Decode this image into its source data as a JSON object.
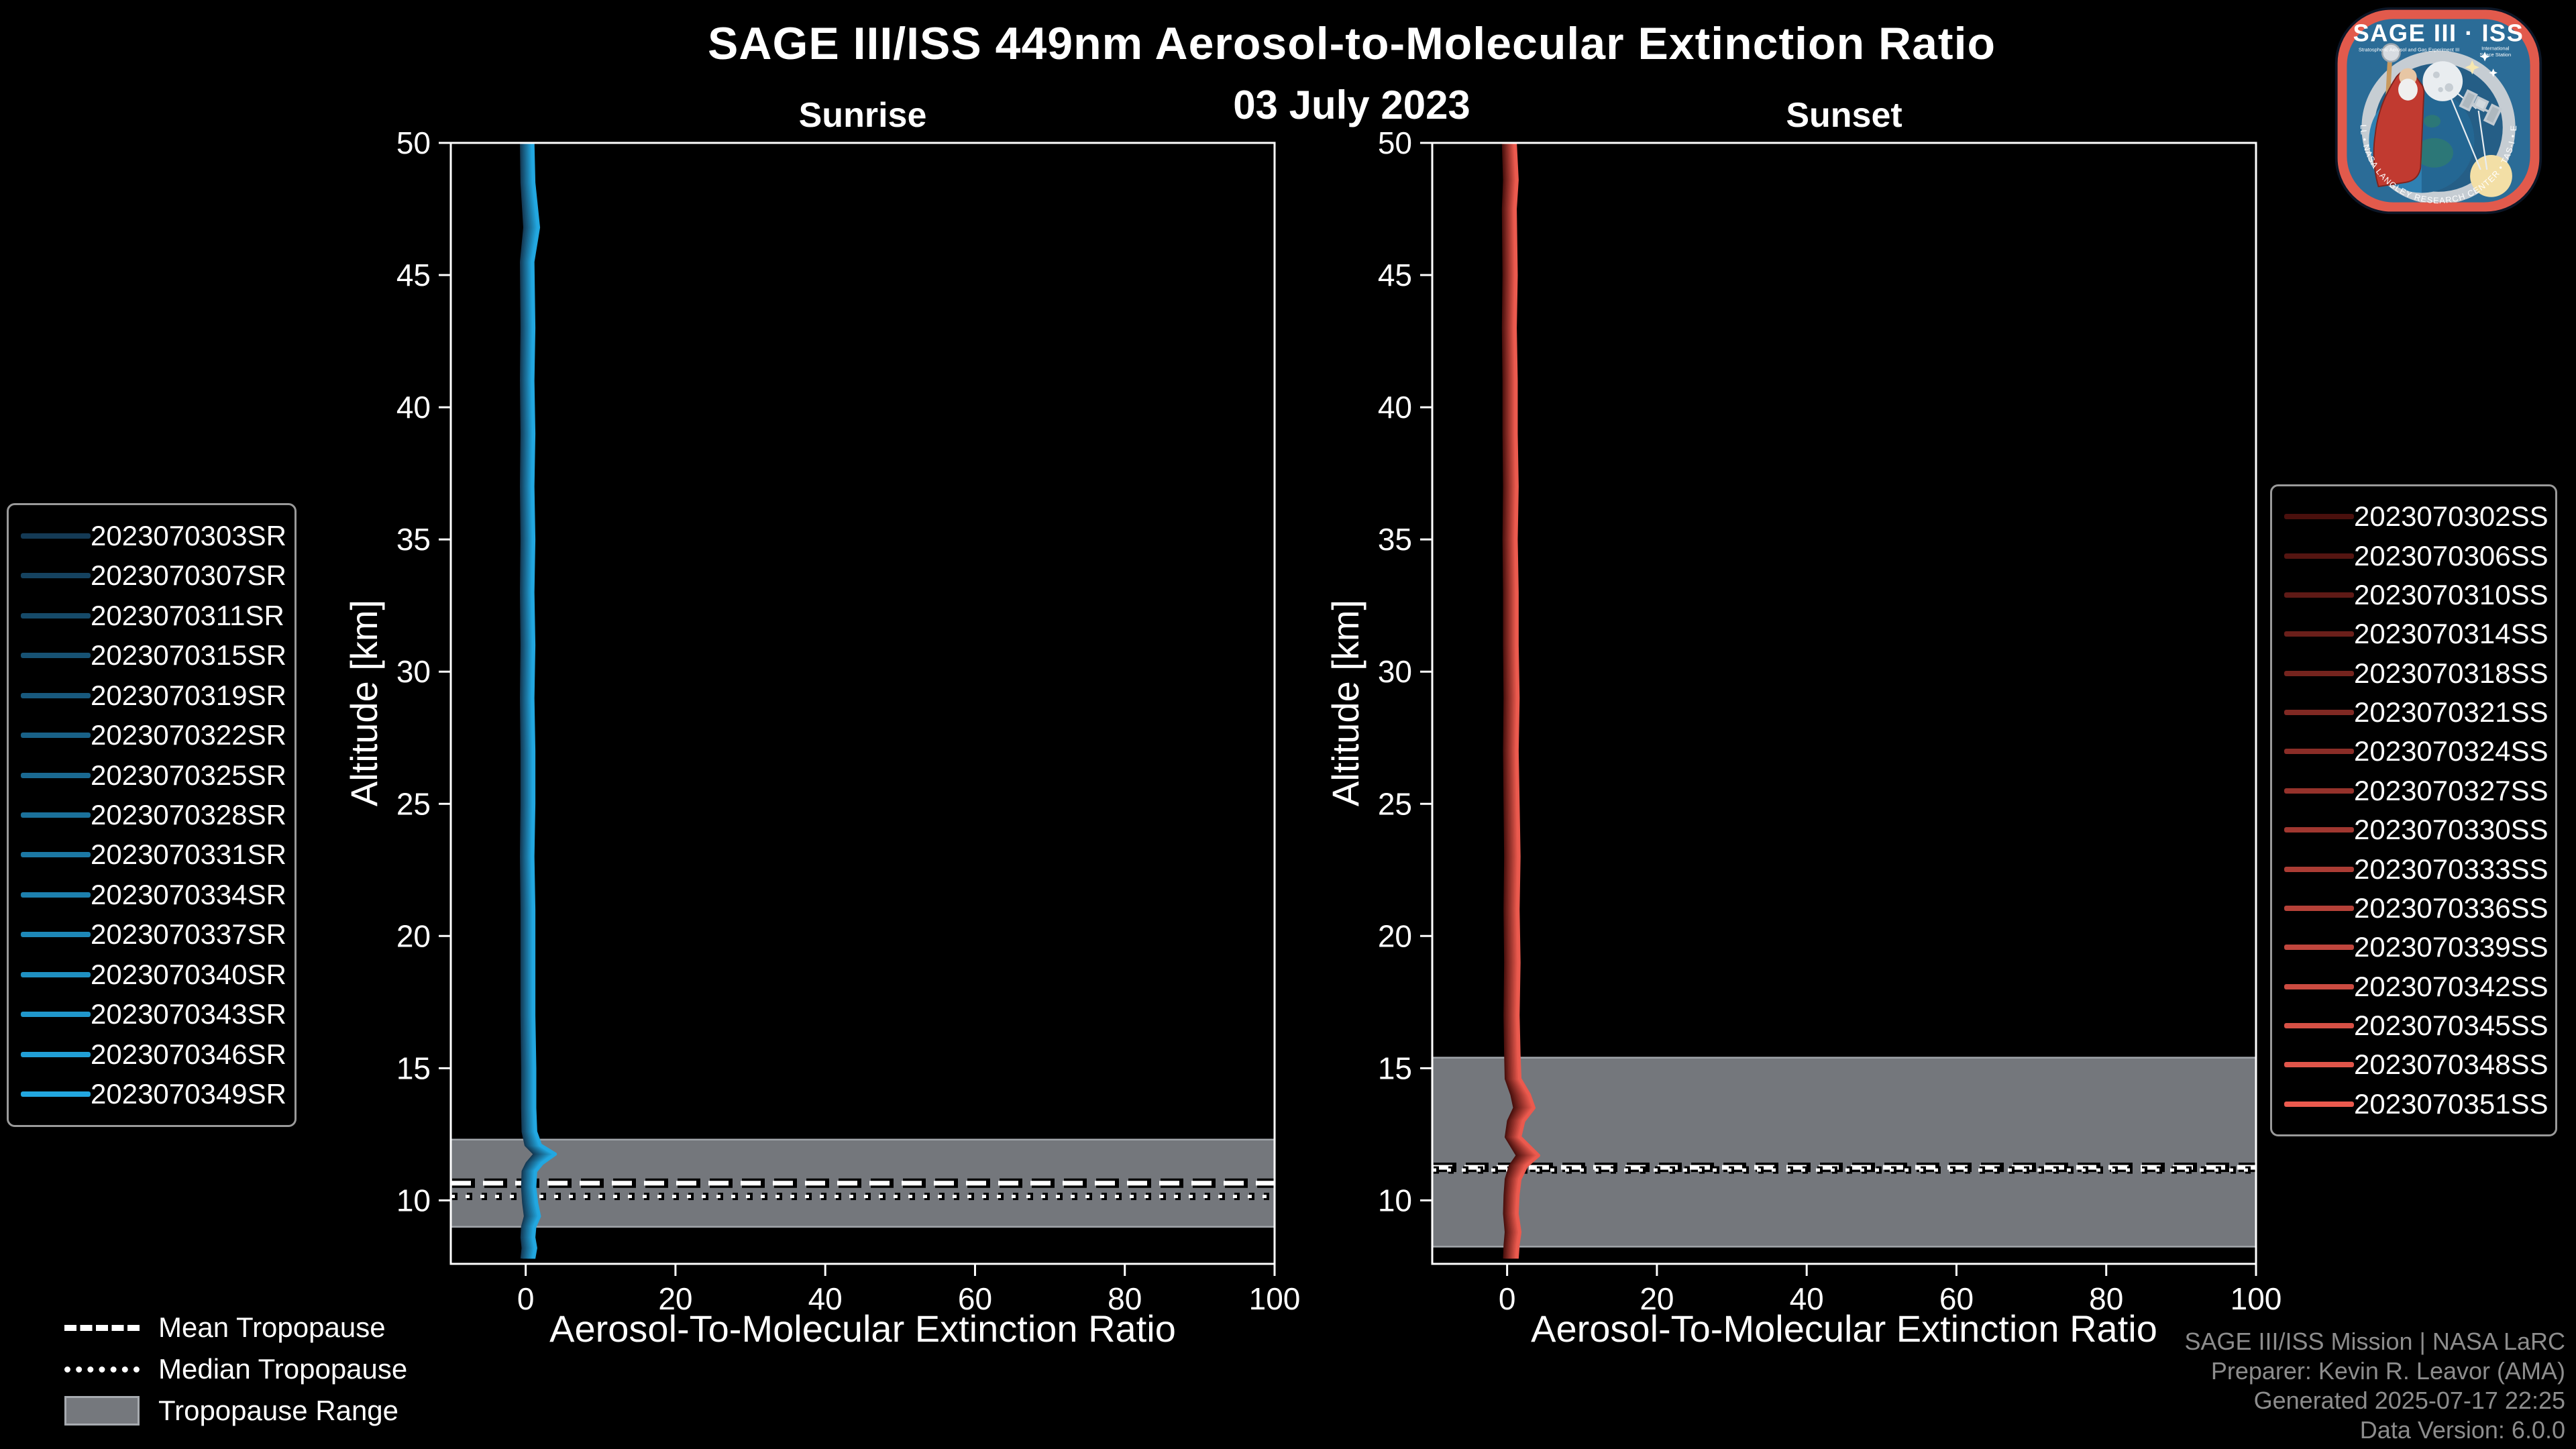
{
  "page": {
    "background": "#000000",
    "axis_color": "#FFFFFF"
  },
  "header": {
    "title": "SAGE III/ISS 449nm Aerosol-to-Molecular Extinction Ratio",
    "date": "03 July 2023"
  },
  "logo": {
    "title": "SAGE III · ISS",
    "subtitle_left": "Stratospheric Aerosol and Gas Experiment III",
    "subtitle_right1": "International",
    "subtitle_right2": "Space Station",
    "ring_text": "BALL • NASA LANGLEY RESEARCH CENTER • TAS-I • ESA",
    "border_color": "#E25A4C",
    "field_color": "#2B6C97"
  },
  "tropopause_legend": {
    "items": [
      {
        "label": "Mean Tropopause",
        "style": "dashed"
      },
      {
        "label": "Median Tropopause",
        "style": "dotted"
      },
      {
        "label": "Tropopause Range",
        "style": "band"
      }
    ]
  },
  "footer": {
    "color": "#8D8D8D",
    "lines": [
      "SAGE III/ISS Mission | NASA LaRC",
      "Preparer: Kevin R. Leavor (AMA)",
      "Generated 2025-07-17 22:25",
      "Data Version: 6.0.0"
    ]
  },
  "chart_data": [
    {
      "type": "line",
      "title": "Sunrise",
      "xlabel": "Aerosol-To-Molecular Extinction Ratio",
      "ylabel": "Altitude [km]",
      "xlim": [
        -10,
        100
      ],
      "ylim": [
        7.6,
        50
      ],
      "xticks": [
        0,
        20,
        40,
        60,
        80,
        100
      ],
      "yticks": [
        10,
        15,
        20,
        25,
        30,
        35,
        40,
        45,
        50
      ],
      "grid": false,
      "legend_position": "outside-left",
      "line_color": "#1F97D0",
      "tropopause": {
        "range_km": [
          9.0,
          12.3
        ],
        "mean_km": 10.65,
        "median_km": 10.15,
        "band_color": "#74777C",
        "band_edge_color": "#A2A6AB"
      },
      "profile_ratio_alt": [
        [
          0.2,
          50
        ],
        [
          0.3,
          48.5
        ],
        [
          0.8,
          46.8
        ],
        [
          0.2,
          45.5
        ],
        [
          0.3,
          43
        ],
        [
          0.2,
          41
        ],
        [
          0.3,
          39
        ],
        [
          0.2,
          37
        ],
        [
          0.3,
          35
        ],
        [
          0.2,
          33
        ],
        [
          0.3,
          31
        ],
        [
          0.2,
          29
        ],
        [
          0.3,
          27
        ],
        [
          0.3,
          25
        ],
        [
          0.2,
          23
        ],
        [
          0.3,
          21
        ],
        [
          0.3,
          19
        ],
        [
          0.3,
          17
        ],
        [
          0.4,
          15
        ],
        [
          0.4,
          13.5
        ],
        [
          0.5,
          12.6
        ],
        [
          1.0,
          12.1
        ],
        [
          2.6,
          11.75
        ],
        [
          1.2,
          11.4
        ],
        [
          0.5,
          11.1
        ],
        [
          0.4,
          10.5
        ],
        [
          0.6,
          9.9
        ],
        [
          0.9,
          9.4
        ],
        [
          0.4,
          9.0
        ],
        [
          0.3,
          8.6
        ],
        [
          0.5,
          8.2
        ],
        [
          0.3,
          7.8
        ]
      ],
      "series": [
        {
          "name": "2023070303SR",
          "color": "#143A55"
        },
        {
          "name": "2023070307SR",
          "color": "#15425F"
        },
        {
          "name": "2023070311SR",
          "color": "#164A69"
        },
        {
          "name": "2023070315SR",
          "color": "#175273"
        },
        {
          "name": "2023070319SR",
          "color": "#18597D"
        },
        {
          "name": "2023070322SR",
          "color": "#196187"
        },
        {
          "name": "2023070325SR",
          "color": "#1A6991"
        },
        {
          "name": "2023070328SR",
          "color": "#1B719B"
        },
        {
          "name": "2023070331SR",
          "color": "#1C78A4"
        },
        {
          "name": "2023070334SR",
          "color": "#1D80AE"
        },
        {
          "name": "2023070337SR",
          "color": "#1E88B8"
        },
        {
          "name": "2023070340SR",
          "color": "#1F90C2"
        },
        {
          "name": "2023070343SR",
          "color": "#2097CC"
        },
        {
          "name": "2023070346SR",
          "color": "#219FD6"
        },
        {
          "name": "2023070349SR",
          "color": "#22A7E0"
        }
      ]
    },
    {
      "type": "line",
      "title": "Sunset",
      "xlabel": "Aerosol-To-Molecular Extinction Ratio",
      "ylabel": "Altitude [km]",
      "xlim": [
        -10,
        100
      ],
      "ylim": [
        7.6,
        50
      ],
      "xticks": [
        0,
        20,
        40,
        60,
        80,
        100
      ],
      "yticks": [
        10,
        15,
        20,
        25,
        30,
        35,
        40,
        45,
        50
      ],
      "grid": false,
      "legend_position": "outside-right",
      "line_color": "#E8584E",
      "tropopause": {
        "range_km": [
          8.25,
          15.4
        ],
        "mean_km": 11.25,
        "median_km": 11.15,
        "band_color": "#74777C",
        "band_edge_color": "#A2A6AB"
      },
      "profile_ratio_alt": [
        [
          0.3,
          50
        ],
        [
          0.5,
          48.6
        ],
        [
          0.3,
          47.5
        ],
        [
          0.4,
          45
        ],
        [
          0.3,
          43
        ],
        [
          0.4,
          41
        ],
        [
          0.4,
          39
        ],
        [
          0.5,
          37
        ],
        [
          0.4,
          35
        ],
        [
          0.5,
          33
        ],
        [
          0.5,
          31
        ],
        [
          0.6,
          29
        ],
        [
          0.5,
          27
        ],
        [
          0.6,
          25
        ],
        [
          0.7,
          23
        ],
        [
          0.6,
          21
        ],
        [
          0.7,
          19
        ],
        [
          0.6,
          17
        ],
        [
          0.7,
          15.5
        ],
        [
          0.8,
          14.6
        ],
        [
          1.8,
          14.0
        ],
        [
          2.3,
          13.5
        ],
        [
          1.2,
          13.0
        ],
        [
          0.8,
          12.4
        ],
        [
          2.8,
          11.7
        ],
        [
          1.5,
          11.3
        ],
        [
          0.8,
          10.8
        ],
        [
          0.6,
          10.2
        ],
        [
          0.5,
          9.5
        ],
        [
          0.8,
          8.8
        ],
        [
          0.6,
          8.3
        ],
        [
          0.5,
          7.8
        ]
      ],
      "series": [
        {
          "name": "2023070302SS",
          "color": "#4A100D"
        },
        {
          "name": "2023070306SS",
          "color": "#551511"
        },
        {
          "name": "2023070310SS",
          "color": "#5F1A16"
        },
        {
          "name": "2023070314SS",
          "color": "#6A1F1A"
        },
        {
          "name": "2023070318SS",
          "color": "#75241E"
        },
        {
          "name": "2023070321SS",
          "color": "#802923"
        },
        {
          "name": "2023070324SS",
          "color": "#8A2D27"
        },
        {
          "name": "2023070327SS",
          "color": "#95322B"
        },
        {
          "name": "2023070330SS",
          "color": "#A03730"
        },
        {
          "name": "2023070333SS",
          "color": "#AB3C34"
        },
        {
          "name": "2023070336SS",
          "color": "#B54138"
        },
        {
          "name": "2023070339SS",
          "color": "#C0463D"
        },
        {
          "name": "2023070342SS",
          "color": "#CB4B41"
        },
        {
          "name": "2023070345SS",
          "color": "#D65045"
        },
        {
          "name": "2023070348SS",
          "color": "#E0554A"
        },
        {
          "name": "2023070351SS",
          "color": "#EB5A4E"
        }
      ]
    }
  ]
}
